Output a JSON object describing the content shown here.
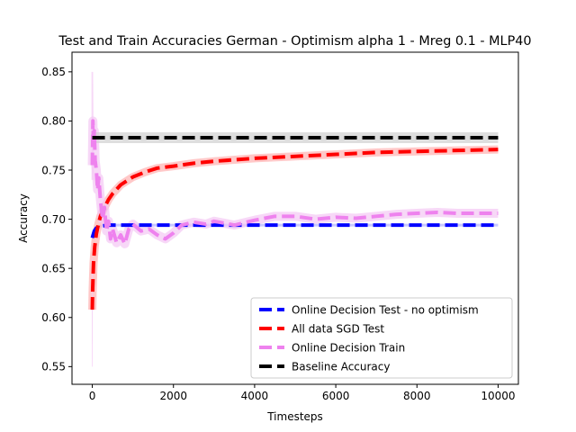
{
  "chart_data": {
    "type": "line",
    "title": "Test and Train Accuracies German - Optimism alpha 1 - Mreg 0.1 - MLP40",
    "xlabel": "Timesteps",
    "ylabel": "Accuracy",
    "xlim": [
      -500,
      10500
    ],
    "ylim": [
      0.532,
      0.87
    ],
    "xticks": [
      0,
      2000,
      4000,
      6000,
      8000,
      10000
    ],
    "xtick_labels": [
      "0",
      "2000",
      "4000",
      "6000",
      "8000",
      "10000"
    ],
    "yticks": [
      0.55,
      0.6,
      0.65,
      0.7,
      0.75,
      0.8,
      0.85
    ],
    "ytick_labels": [
      "0.55",
      "0.60",
      "0.65",
      "0.70",
      "0.75",
      "0.80",
      "0.85"
    ],
    "grid": false,
    "legend_position": "lower-right",
    "series": [
      {
        "name": "Online Decision Test - no optimism",
        "color": "#0000ff",
        "style": "dashed",
        "points": [
          [
            0,
            0.681
          ],
          [
            20,
            0.684
          ],
          [
            50,
            0.688
          ],
          [
            100,
            0.691
          ],
          [
            200,
            0.693
          ],
          [
            400,
            0.694
          ],
          [
            1000,
            0.694
          ],
          [
            2000,
            0.694
          ],
          [
            4000,
            0.694
          ],
          [
            6000,
            0.694
          ],
          [
            8000,
            0.694
          ],
          [
            10000,
            0.694
          ]
        ]
      },
      {
        "name": "All data SGD Test",
        "color": "#ff0000",
        "style": "dashed",
        "points": [
          [
            0,
            0.608
          ],
          [
            10,
            0.63
          ],
          [
            30,
            0.655
          ],
          [
            60,
            0.672
          ],
          [
            100,
            0.685
          ],
          [
            150,
            0.695
          ],
          [
            200,
            0.703
          ],
          [
            300,
            0.712
          ],
          [
            400,
            0.72
          ],
          [
            500,
            0.726
          ],
          [
            700,
            0.735
          ],
          [
            1000,
            0.743
          ],
          [
            1300,
            0.748
          ],
          [
            1600,
            0.752
          ],
          [
            2000,
            0.754
          ],
          [
            2500,
            0.757
          ],
          [
            3000,
            0.759
          ],
          [
            4000,
            0.762
          ],
          [
            5000,
            0.764
          ],
          [
            6000,
            0.766
          ],
          [
            7000,
            0.768
          ],
          [
            8000,
            0.769
          ],
          [
            9000,
            0.77
          ],
          [
            10000,
            0.771
          ]
        ]
      },
      {
        "name": "Online Decision Train",
        "color": "#ee82ee",
        "style": "dashed",
        "points": [
          [
            0,
            0.755
          ],
          [
            15,
            0.8
          ],
          [
            30,
            0.775
          ],
          [
            50,
            0.79
          ],
          [
            70,
            0.76
          ],
          [
            100,
            0.75
          ],
          [
            130,
            0.73
          ],
          [
            160,
            0.742
          ],
          [
            200,
            0.72
          ],
          [
            250,
            0.7
          ],
          [
            300,
            0.712
          ],
          [
            350,
            0.688
          ],
          [
            400,
            0.698
          ],
          [
            450,
            0.68
          ],
          [
            500,
            0.69
          ],
          [
            600,
            0.676
          ],
          [
            700,
            0.684
          ],
          [
            800,
            0.675
          ],
          [
            900,
            0.69
          ],
          [
            1000,
            0.695
          ],
          [
            1200,
            0.688
          ],
          [
            1400,
            0.69
          ],
          [
            1600,
            0.684
          ],
          [
            1800,
            0.68
          ],
          [
            2000,
            0.686
          ],
          [
            2200,
            0.694
          ],
          [
            2500,
            0.697
          ],
          [
            2800,
            0.695
          ],
          [
            3000,
            0.698
          ],
          [
            3500,
            0.694
          ],
          [
            4000,
            0.699
          ],
          [
            4500,
            0.703
          ],
          [
            5000,
            0.703
          ],
          [
            5500,
            0.7
          ],
          [
            6000,
            0.702
          ],
          [
            6500,
            0.701
          ],
          [
            7000,
            0.703
          ],
          [
            7500,
            0.705
          ],
          [
            8000,
            0.706
          ],
          [
            8500,
            0.707
          ],
          [
            9000,
            0.706
          ],
          [
            9500,
            0.706
          ],
          [
            10000,
            0.706
          ]
        ]
      },
      {
        "name": "Baseline Accuracy",
        "color": "#000000",
        "style": "dashed",
        "points": [
          [
            0,
            0.783
          ],
          [
            10000,
            0.783
          ]
        ]
      }
    ]
  }
}
